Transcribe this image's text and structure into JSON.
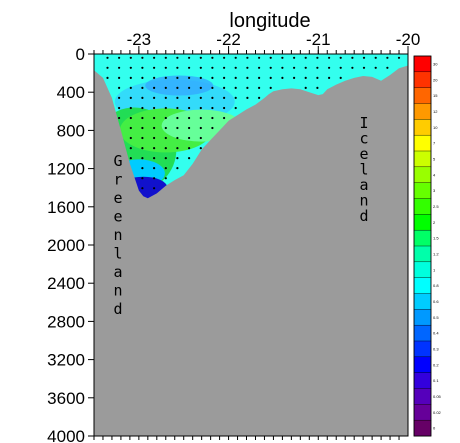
{
  "chart_data": {
    "type": "heatmap",
    "title": "",
    "xlabel": "longitude",
    "ylabel": "",
    "x_ticks": [
      "-23",
      "-22",
      "-21",
      "-20"
    ],
    "y_ticks": [
      "0",
      "400",
      "800",
      "1200",
      "1600",
      "2000",
      "2400",
      "2800",
      "3200",
      "3600",
      "4000"
    ],
    "xlim": [
      -23.5,
      -20.0
    ],
    "ylim": [
      0,
      4000
    ],
    "y_inverted": true,
    "bathymetry": {
      "lon": [
        -23.5,
        -23.4,
        -23.3,
        -23.2,
        -23.1,
        -23.0,
        -22.95,
        -22.9,
        -22.8,
        -22.7,
        -22.6,
        -22.5,
        -22.4,
        -22.3,
        -22.2,
        -22.1,
        -22.0,
        -21.9,
        -21.8,
        -21.7,
        -21.6,
        -21.55,
        -21.5,
        -21.4,
        -21.3,
        -21.2,
        -21.1,
        -21.0,
        -20.95,
        -20.9,
        -20.8,
        -20.7,
        -20.6,
        -20.5,
        -20.4,
        -20.3,
        -20.2,
        -20.1,
        -20.0
      ],
      "depth": [
        170,
        250,
        460,
        800,
        1150,
        1430,
        1490,
        1510,
        1460,
        1380,
        1320,
        1270,
        1150,
        1000,
        900,
        800,
        700,
        640,
        580,
        530,
        460,
        420,
        390,
        370,
        360,
        370,
        400,
        430,
        420,
        370,
        320,
        280,
        250,
        230,
        240,
        280,
        220,
        150,
        120
      ]
    },
    "colorbar": {
      "colors": [
        "#ff0000",
        "#ff3300",
        "#ff6600",
        "#ff9900",
        "#ffcc00",
        "#ffff00",
        "#ccff00",
        "#99ff00",
        "#66ff00",
        "#33ff00",
        "#00ff00",
        "#00ff66",
        "#00ffaa",
        "#00ffdd",
        "#00ffff",
        "#00ccff",
        "#0099ff",
        "#0066ff",
        "#0033ff",
        "#0000ff",
        "#3300dd",
        "#5500bb",
        "#660099",
        "#660066"
      ],
      "labels": [
        "30",
        "20",
        "15",
        "12",
        "10",
        "7",
        "5",
        "4",
        "3",
        "2.5",
        "2",
        "1.5",
        "1.2",
        "1",
        "0.8",
        "0.6",
        "0.5",
        "0.4",
        "0.3",
        "0.2",
        "0.1",
        "0.05",
        "0.02",
        "0"
      ]
    },
    "land_labels": {
      "greenland": [
        "G",
        "r",
        "e",
        "e",
        "n",
        "l",
        "a",
        "n",
        "d"
      ],
      "iceland": [
        "I",
        "c",
        "e",
        "l",
        "a",
        "n",
        "d"
      ]
    },
    "colors": {
      "land": "#9b9b9b",
      "surface": "#33ffee",
      "mid": "#33eedd",
      "deep_green": "#22dd55",
      "deep_blue": "#1111cc"
    }
  }
}
